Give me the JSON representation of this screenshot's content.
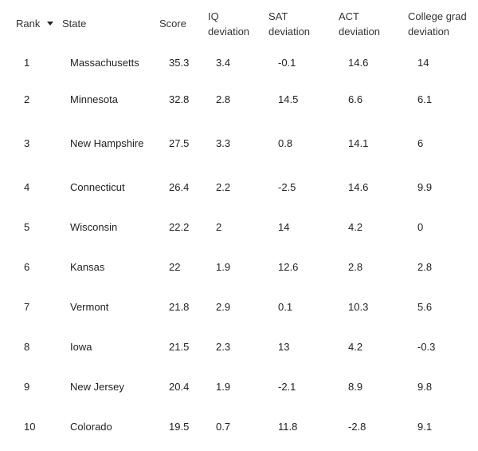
{
  "table": {
    "headers": {
      "rank": "Rank",
      "state": "State",
      "score": "Score",
      "iq_line1": "IQ",
      "iq_line2": "deviation",
      "sat_line1": "SAT",
      "sat_line2": "deviation",
      "act_line1": "ACT",
      "act_line2": "deviation",
      "college_line1": "College grad",
      "college_line2": "deviation"
    },
    "sort": {
      "column": "rank",
      "icon": "sort-down-triangle-icon"
    },
    "rows": [
      {
        "rank": "1",
        "state": "Massachusetts",
        "score": "35.3",
        "iq": "3.4",
        "sat": "-0.1",
        "act": "14.6",
        "college": "14"
      },
      {
        "rank": "2",
        "state": "Minnesota",
        "score": "32.8",
        "iq": "2.8",
        "sat": "14.5",
        "act": "6.6",
        "college": "6.1"
      },
      {
        "rank": "3",
        "state": "New Hampshire",
        "score": "27.5",
        "iq": "3.3",
        "sat": "0.8",
        "act": "14.1",
        "college": "6"
      },
      {
        "rank": "4",
        "state": "Connecticut",
        "score": "26.4",
        "iq": "2.2",
        "sat": "-2.5",
        "act": "14.6",
        "college": "9.9"
      },
      {
        "rank": "5",
        "state": "Wisconsin",
        "score": "22.2",
        "iq": "2",
        "sat": "14",
        "act": "4.2",
        "college": "0"
      },
      {
        "rank": "6",
        "state": "Kansas",
        "score": "22",
        "iq": "1.9",
        "sat": "12.6",
        "act": "2.8",
        "college": "2.8"
      },
      {
        "rank": "7",
        "state": "Vermont",
        "score": "21.8",
        "iq": "2.9",
        "sat": "0.1",
        "act": "10.3",
        "college": "5.6"
      },
      {
        "rank": "8",
        "state": "Iowa",
        "score": "21.5",
        "iq": "2.3",
        "sat": "13",
        "act": "4.2",
        "college": "-0.3"
      },
      {
        "rank": "9",
        "state": "New Jersey",
        "score": "20.4",
        "iq": "1.9",
        "sat": "-2.1",
        "act": "8.9",
        "college": "9.8"
      },
      {
        "rank": "10",
        "state": "Colorado",
        "score": "19.5",
        "iq": "0.7",
        "sat": "11.8",
        "act": "-2.8",
        "college": "9.1"
      }
    ]
  }
}
